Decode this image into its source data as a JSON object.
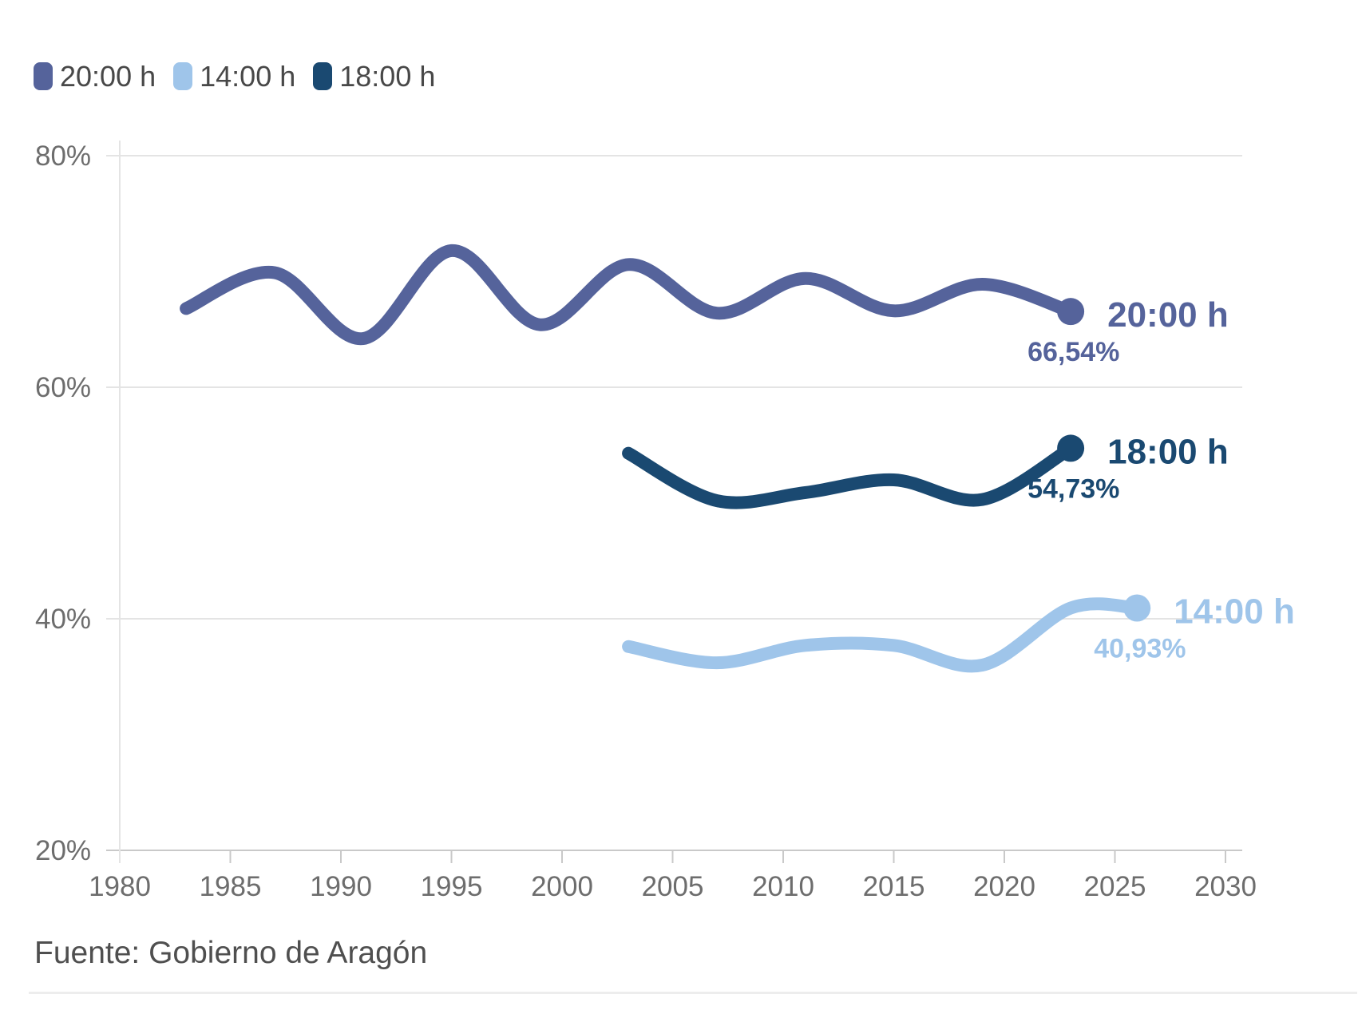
{
  "legend": {
    "items": [
      {
        "label": "20:00 h",
        "color": "#55639B"
      },
      {
        "label": "14:00 h",
        "color": "#9FC5EA"
      },
      {
        "label": "18:00 h",
        "color": "#1A4971"
      }
    ]
  },
  "source": {
    "text": "Fuente: Gobierno de Aragón"
  },
  "chart_data": {
    "type": "line",
    "title": "",
    "xlabel": "",
    "ylabel": "",
    "xlim": [
      1979.4,
      2030.8
    ],
    "ylim": [
      20,
      80
    ],
    "grid": "horizontal",
    "legend_position": "top-left",
    "x_ticks": [
      1980,
      1985,
      1990,
      1995,
      2000,
      2005,
      2010,
      2015,
      2020,
      2025,
      2030
    ],
    "y_ticks": [
      {
        "value": 80,
        "label": "80%"
      },
      {
        "value": 60,
        "label": "60%"
      },
      {
        "value": 40,
        "label": "40%"
      },
      {
        "value": 20,
        "label": "20%"
      }
    ],
    "series": [
      {
        "id": "2000h",
        "name": "20:00 h",
        "color": "#55639B",
        "end_label": "20:00 h",
        "end_value_label": "66,54%",
        "end_value": 66.54,
        "points": [
          [
            1983,
            66.8
          ],
          [
            1987,
            69.9
          ],
          [
            1991,
            64.2
          ],
          [
            1995,
            71.8
          ],
          [
            1999,
            65.4
          ],
          [
            2003,
            70.6
          ],
          [
            2007,
            66.4
          ],
          [
            2011,
            69.4
          ],
          [
            2015,
            66.6
          ],
          [
            2019,
            68.9
          ],
          [
            2023,
            66.54
          ]
        ]
      },
      {
        "id": "1800h",
        "name": "18:00 h",
        "color": "#1A4971",
        "end_label": "18:00 h",
        "end_value_label": "54,73%",
        "end_value": 54.73,
        "points": [
          [
            2003,
            54.3
          ],
          [
            2007,
            50.2
          ],
          [
            2011,
            50.9
          ],
          [
            2015,
            52.0
          ],
          [
            2019,
            50.3
          ],
          [
            2023,
            54.73
          ]
        ]
      },
      {
        "id": "1400h",
        "name": "14:00 h",
        "color": "#9FC5EA",
        "end_label": "14:00 h",
        "end_value_label": "40,93%",
        "end_value": 40.93,
        "points": [
          [
            2003,
            37.6
          ],
          [
            2007,
            36.2
          ],
          [
            2011,
            37.7
          ],
          [
            2015,
            37.7
          ],
          [
            2019,
            36.0
          ],
          [
            2023,
            40.93
          ],
          [
            2026,
            40.93
          ]
        ]
      }
    ],
    "source": "Fuente: Gobierno de Aragón"
  }
}
